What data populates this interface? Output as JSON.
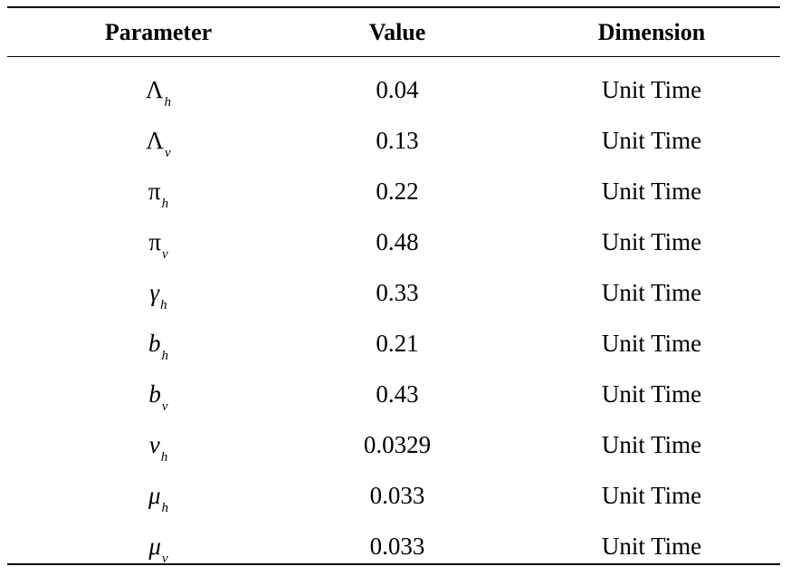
{
  "table": {
    "headers": [
      "Parameter",
      "Value",
      "Dimension"
    ],
    "rows": [
      {
        "symbol": "Λ",
        "symbol_italic": false,
        "sub": "h",
        "value": "0.04",
        "dimension": "Unit Time"
      },
      {
        "symbol": "Λ",
        "symbol_italic": false,
        "sub": "v",
        "value": "0.13",
        "dimension": "Unit Time"
      },
      {
        "symbol": "π",
        "symbol_italic": false,
        "sub": "h",
        "value": "0.22",
        "dimension": "Unit Time"
      },
      {
        "symbol": "π",
        "symbol_italic": false,
        "sub": "v",
        "value": "0.48",
        "dimension": "Unit Time"
      },
      {
        "symbol": "γ",
        "symbol_italic": true,
        "sub": "h",
        "value": "0.33",
        "dimension": "Unit Time"
      },
      {
        "symbol": "b",
        "symbol_italic": true,
        "sub": "h",
        "value": "0.21",
        "dimension": "Unit Time"
      },
      {
        "symbol": "b",
        "symbol_italic": true,
        "sub": "v",
        "value": "0.43",
        "dimension": "Unit Time"
      },
      {
        "symbol": "ν",
        "symbol_italic": true,
        "sub": "h",
        "value": "0.0329",
        "dimension": "Unit Time"
      },
      {
        "symbol": "μ",
        "symbol_italic": true,
        "sub": "h",
        "value": "0.033",
        "dimension": "Unit Time"
      },
      {
        "symbol": "μ",
        "symbol_italic": true,
        "sub": "v",
        "value": "0.033",
        "dimension": "Unit Time"
      }
    ]
  }
}
